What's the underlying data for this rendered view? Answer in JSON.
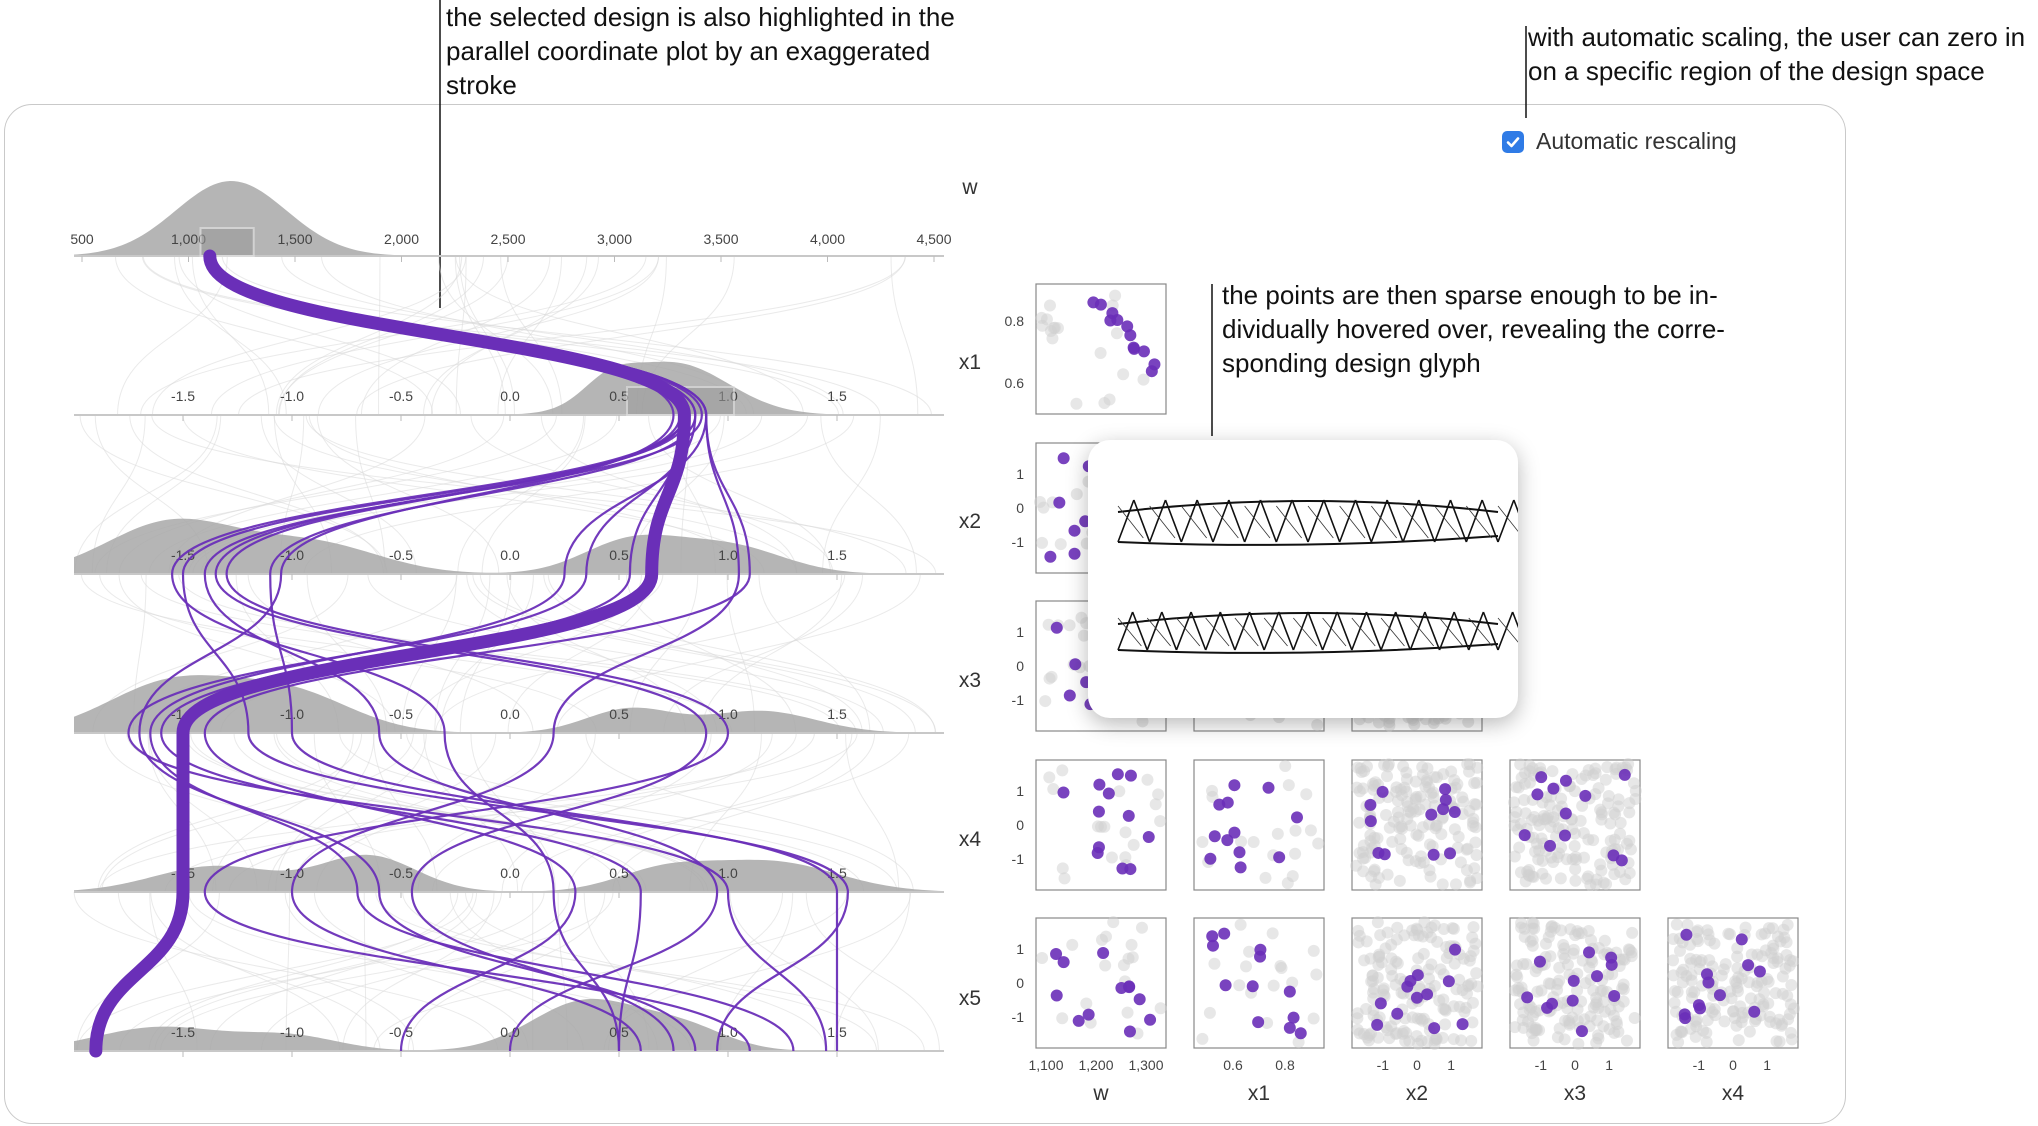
{
  "annotations": {
    "pcp_note": "the selected design is also highlighted in the\nparallel coordinate plot by an exaggerated\nstroke",
    "scaling_note": "with automatic scaling, the user can zero in\non a specific region of the design space",
    "hover_note": "the points are then sparse enough to be in-\ndividually hovered over, revealing the corre-\nsponding design glyph"
  },
  "controls": {
    "automatic_rescaling": {
      "label": "Automatic rescaling",
      "checked": true
    }
  },
  "colors": {
    "highlight": "#6a2fb8",
    "context": "#d8d8d8",
    "density": "#a8a8a8",
    "checkbox": "#2f7be6"
  },
  "pcp": {
    "axes": [
      {
        "name": "w",
        "ticks": [
          "500",
          "1,000",
          "1,500",
          "2,000",
          "2,500",
          "3,000",
          "3,500",
          "4,000",
          "4,500"
        ]
      },
      {
        "name": "x1",
        "ticks": [
          "-1.5",
          "-1.0",
          "-0.5",
          "0.0",
          "0.5",
          "1.0",
          "1.5"
        ]
      },
      {
        "name": "x2",
        "ticks": [
          "-1.5",
          "-1.0",
          "-0.5",
          "0.0",
          "0.5",
          "1.0",
          "1.5"
        ]
      },
      {
        "name": "x3",
        "ticks": [
          "-1.5",
          "-1.0",
          "-0.5",
          "0.0",
          "0.5",
          "1.0",
          "1.5"
        ]
      },
      {
        "name": "x4",
        "ticks": [
          "-1.5",
          "-1.0",
          "-0.5",
          "0.0",
          "0.5",
          "1.0",
          "1.5"
        ]
      },
      {
        "name": "x5",
        "ticks": [
          "-1.5",
          "-1.0",
          "-0.5",
          "0.0",
          "0.5",
          "1.0",
          "1.5"
        ]
      }
    ],
    "brushes": {
      "w": [
        1000,
        1250
      ],
      "x1": [
        0.5,
        1.0
      ]
    },
    "selected_design": {
      "w": 1100,
      "x1": 0.8,
      "x2": 0.65,
      "x3": -1.5,
      "x4": -1.5,
      "x5": -1.9
    },
    "highlighted_designs": [
      {
        "w": 1100,
        "x1": 0.8,
        "x2": -1.55,
        "x3": -0.3,
        "x4": 0.2,
        "x5": 0.5
      },
      {
        "w": 1100,
        "x1": 0.8,
        "x2": -1.35,
        "x3": 0.9,
        "x4": -0.45,
        "x5": 0.75
      },
      {
        "w": 1100,
        "x1": 0.85,
        "x2": -1.1,
        "x3": -1.0,
        "x4": 1.5,
        "x5": 1.5
      },
      {
        "w": 1100,
        "x1": 0.9,
        "x2": 1.1,
        "x3": -1.4,
        "x4": 0.3,
        "x5": -0.5
      },
      {
        "w": 1100,
        "x1": 0.9,
        "x2": 1.05,
        "x3": 0.2,
        "x4": -1.0,
        "x5": 0.6
      },
      {
        "w": 1100,
        "x1": 0.85,
        "x2": 0.35,
        "x3": -1.75,
        "x4": 1.0,
        "x5": 1.45
      },
      {
        "w": 1100,
        "x1": 0.75,
        "x2": -1.05,
        "x3": -1.7,
        "x4": -0.6,
        "x5": 0.85
      },
      {
        "w": 1100,
        "x1": 0.8,
        "x2": 0.55,
        "x3": -1.6,
        "x4": 0.6,
        "x5": 0.5
      },
      {
        "w": 1100,
        "x1": 0.82,
        "x2": -1.5,
        "x3": -1.2,
        "x4": 1.55,
        "x5": 0.95
      },
      {
        "w": 1100,
        "x1": 0.9,
        "x2": 0.25,
        "x3": -1.65,
        "x4": -0.7,
        "x5": 1.3
      },
      {
        "w": 1100,
        "x1": 0.78,
        "x2": -1.3,
        "x3": 1.0,
        "x4": -1.4,
        "x5": 1.1
      },
      {
        "w": 1100,
        "x1": 0.88,
        "x2": -1.4,
        "x3": -0.6,
        "x4": 0.95,
        "x5": 0.0
      }
    ]
  },
  "splom": {
    "columns": [
      {
        "name": "w",
        "ticks": [
          "1,100",
          "1,200",
          "1,300"
        ]
      },
      {
        "name": "x1",
        "ticks": [
          "0.6",
          "0.8"
        ]
      },
      {
        "name": "x2",
        "ticks": [
          "-1",
          "0",
          "1"
        ]
      },
      {
        "name": "x3",
        "ticks": [
          "-1",
          "0",
          "1"
        ]
      },
      {
        "name": "x4",
        "ticks": [
          "-1",
          "0",
          "1"
        ]
      }
    ],
    "rows": [
      {
        "name": "x1",
        "ticks": [
          "0.8",
          "0.6"
        ]
      },
      {
        "name": "x2",
        "ticks": [
          "1",
          "0",
          "-1"
        ]
      },
      {
        "name": "x3",
        "ticks": [
          "1",
          "0",
          "-1"
        ]
      },
      {
        "name": "x4",
        "ticks": [
          "1",
          "0",
          "-1"
        ]
      },
      {
        "name": "x5",
        "ticks": [
          "1",
          "0",
          "-1"
        ]
      }
    ]
  }
}
